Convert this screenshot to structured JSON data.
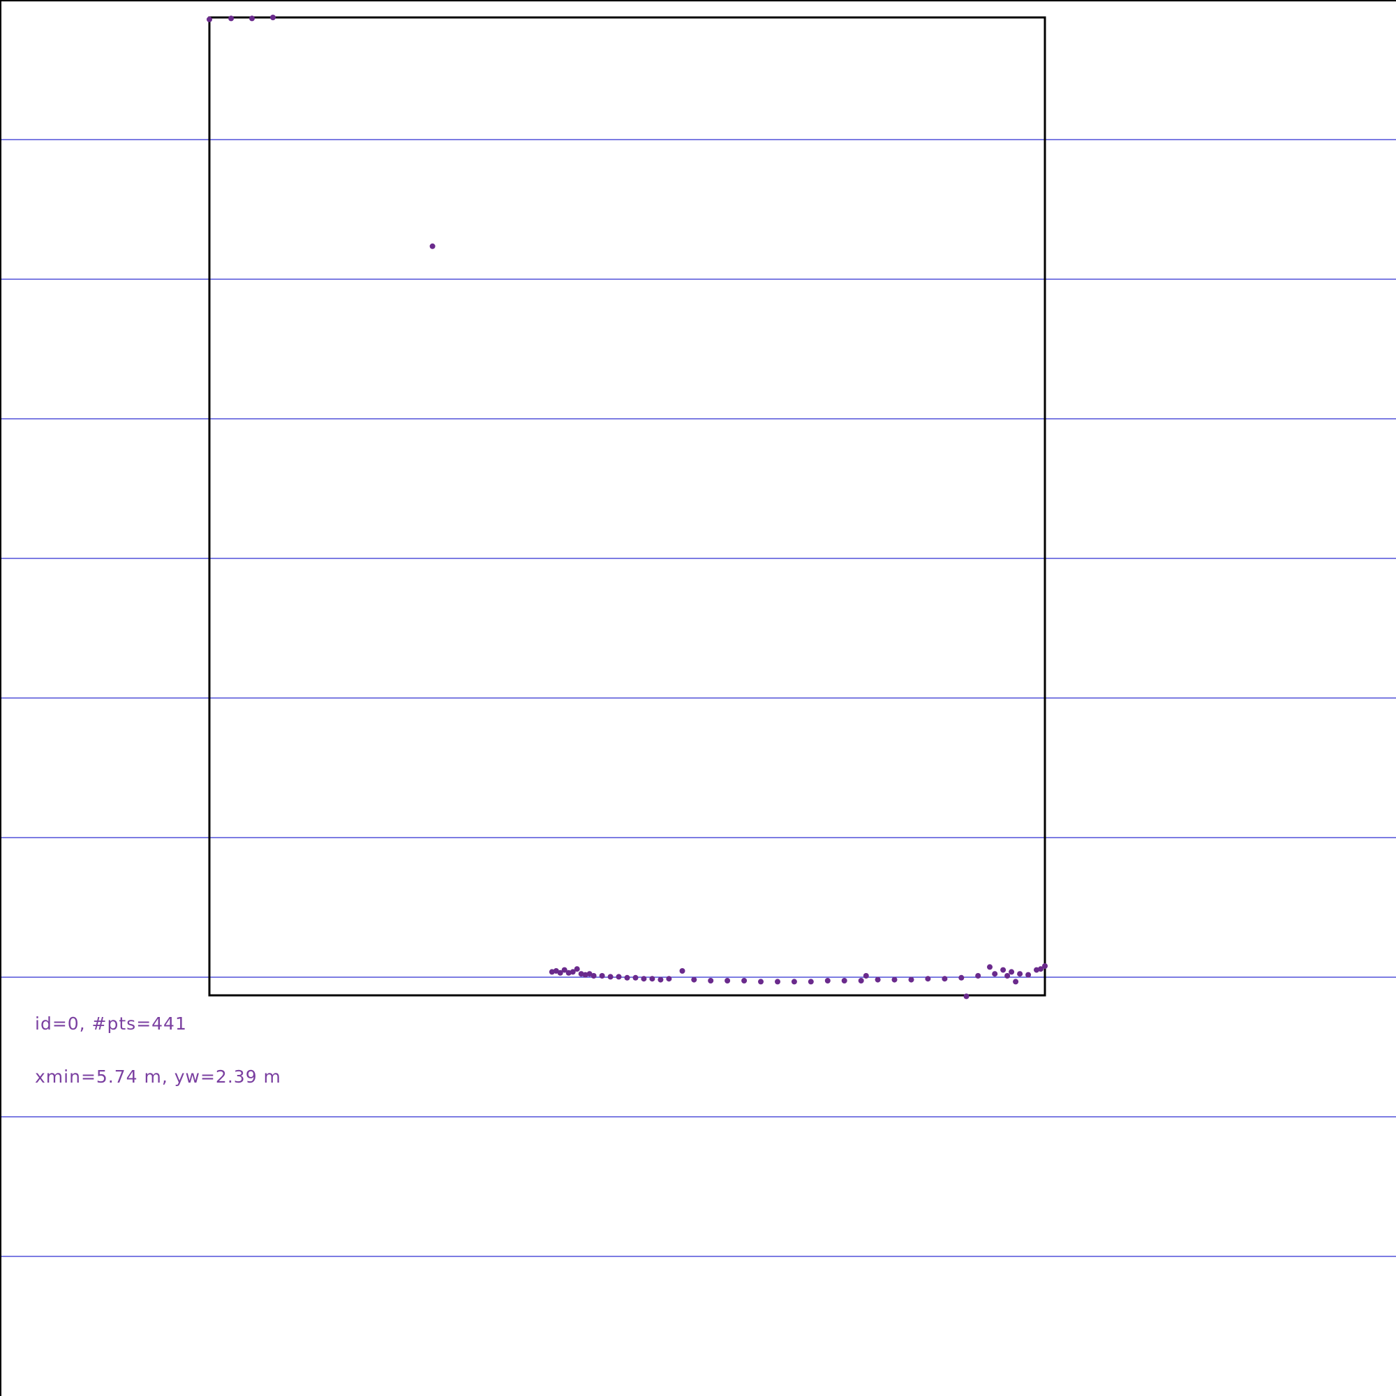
{
  "info": {
    "line1": "id=0, #pts=441",
    "line2": "xmin=5.74 m, yw=2.39 m"
  },
  "colors": {
    "grid": "#2f2fd0",
    "frame": "#000000",
    "points": "#6a2a8c",
    "text": "#7a3fa0"
  },
  "chart_data": {
    "type": "scatter",
    "title": "",
    "xlabel": "",
    "ylabel": "",
    "grid": true,
    "grid_orientation": "horizontal",
    "point_count": 441,
    "xlim": [
      0,
      1
    ],
    "ylim": [
      0,
      1
    ],
    "series": [
      {
        "points": [
          [
            0.0,
            0.998
          ],
          [
            0.026,
            0.999
          ],
          [
            0.051,
            0.999
          ],
          [
            0.076,
            1.0
          ],
          [
            0.267,
            0.766
          ],
          [
            0.906,
            -0.001
          ],
          [
            0.41,
            0.024
          ],
          [
            0.415,
            0.025
          ],
          [
            0.42,
            0.023
          ],
          [
            0.425,
            0.026
          ],
          [
            0.43,
            0.023
          ],
          [
            0.435,
            0.024
          ],
          [
            0.44,
            0.027
          ],
          [
            0.445,
            0.022
          ],
          [
            0.45,
            0.021
          ],
          [
            0.455,
            0.022
          ],
          [
            0.46,
            0.02
          ],
          [
            0.47,
            0.02
          ],
          [
            0.48,
            0.019
          ],
          [
            0.49,
            0.019
          ],
          [
            0.5,
            0.018
          ],
          [
            0.51,
            0.018
          ],
          [
            0.52,
            0.017
          ],
          [
            0.53,
            0.017
          ],
          [
            0.54,
            0.016
          ],
          [
            0.55,
            0.017
          ],
          [
            0.566,
            0.025
          ],
          [
            0.58,
            0.016
          ],
          [
            0.6,
            0.015
          ],
          [
            0.62,
            0.015
          ],
          [
            0.64,
            0.015
          ],
          [
            0.66,
            0.014
          ],
          [
            0.68,
            0.014
          ],
          [
            0.7,
            0.014
          ],
          [
            0.72,
            0.014
          ],
          [
            0.74,
            0.015
          ],
          [
            0.76,
            0.015
          ],
          [
            0.78,
            0.015
          ],
          [
            0.786,
            0.02
          ],
          [
            0.8,
            0.016
          ],
          [
            0.82,
            0.016
          ],
          [
            0.84,
            0.016
          ],
          [
            0.86,
            0.017
          ],
          [
            0.88,
            0.017
          ],
          [
            0.9,
            0.018
          ],
          [
            0.92,
            0.02
          ],
          [
            0.934,
            0.029
          ],
          [
            0.94,
            0.022
          ],
          [
            0.95,
            0.026
          ],
          [
            0.955,
            0.02
          ],
          [
            0.96,
            0.024
          ],
          [
            0.965,
            0.014
          ],
          [
            0.97,
            0.022
          ],
          [
            0.98,
            0.021
          ],
          [
            0.99,
            0.026
          ],
          [
            0.995,
            0.027
          ],
          [
            1.0,
            0.03
          ]
        ]
      }
    ]
  }
}
